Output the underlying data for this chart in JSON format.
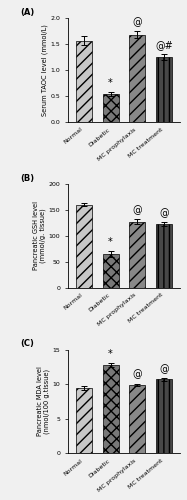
{
  "panel_A": {
    "title": "(A)",
    "ylabel": "Serum TAOC level (mmol/L)",
    "categories": [
      "Normal",
      "Diabetic",
      "MC prophylaxis",
      "MC treatment"
    ],
    "values": [
      1.57,
      0.53,
      1.68,
      1.25
    ],
    "errors": [
      0.08,
      0.04,
      0.07,
      0.06
    ],
    "ylim": [
      0.0,
      2.0
    ],
    "yticks": [
      0.0,
      0.5,
      1.0,
      1.5,
      2.0
    ],
    "ytick_labels": [
      "0.0",
      "0.5",
      "1.0",
      "1.5",
      "2.0"
    ],
    "annotations": [
      "",
      "*",
      "@",
      "@#"
    ],
    "bar_colors": [
      "#c8c8c8",
      "#787878",
      "#888888",
      "#484848"
    ],
    "hatch_patterns": [
      "///",
      "xxx",
      "///",
      "|||"
    ],
    "edgecolors": [
      "black",
      "black",
      "black",
      "black"
    ]
  },
  "panel_B": {
    "title": "(B)",
    "ylabel": "Pancreatic GSH level\n(mmol/g. tissue)",
    "categories": [
      "Normal",
      "Diabetic",
      "MC prophylaxis",
      "MC treatment"
    ],
    "values": [
      160,
      65,
      127,
      123
    ],
    "errors": [
      3,
      5,
      5,
      4
    ],
    "ylim": [
      0,
      200
    ],
    "yticks": [
      0,
      50,
      100,
      150,
      200
    ],
    "ytick_labels": [
      "0",
      "50",
      "100",
      "150",
      "200"
    ],
    "annotations": [
      "",
      "*",
      "@",
      "@"
    ],
    "bar_colors": [
      "#c8c8c8",
      "#787878",
      "#888888",
      "#484848"
    ],
    "hatch_patterns": [
      "///",
      "xxx",
      "///",
      "|||"
    ],
    "edgecolors": [
      "black",
      "black",
      "black",
      "black"
    ]
  },
  "panel_C": {
    "title": "(C)",
    "ylabel": "Pancreatic MDA level\n(nmol/100 g.tissue)",
    "categories": [
      "Normal",
      "Diabetic",
      "MC prophylaxis",
      "MC treatment"
    ],
    "values": [
      9.5,
      12.8,
      9.9,
      10.7
    ],
    "errors": [
      0.3,
      0.25,
      0.2,
      0.2
    ],
    "ylim": [
      0,
      15
    ],
    "yticks": [
      0,
      5,
      10,
      15
    ],
    "ytick_labels": [
      "0",
      "5",
      "10",
      "15"
    ],
    "annotations": [
      "",
      "*",
      "@",
      "@"
    ],
    "bar_colors": [
      "#c8c8c8",
      "#787878",
      "#888888",
      "#484848"
    ],
    "hatch_patterns": [
      "///",
      "xxx",
      "///",
      "|||"
    ],
    "edgecolors": [
      "black",
      "black",
      "black",
      "black"
    ]
  },
  "figure_bg": "#f0f0f0",
  "bar_width": 0.6,
  "font_size_title": 6,
  "font_size_label": 4.8,
  "font_size_tick": 4.5,
  "font_size_annot": 7,
  "font_size_xticklabel": 4.5
}
